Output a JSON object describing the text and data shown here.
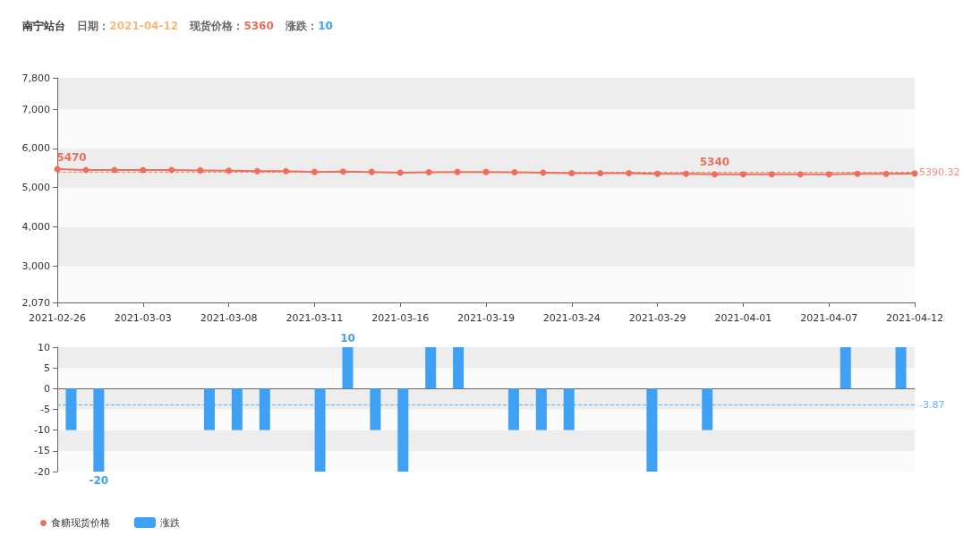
{
  "chart_data": [
    {
      "type": "line",
      "title": "南宁站台",
      "annotations": [
        "日期：2021-04-12",
        "现货价格：5360",
        "涨跌：10"
      ],
      "categories": [
        "2021-02-26",
        null,
        null,
        "2021-03-03",
        null,
        null,
        "2021-03-08",
        null,
        null,
        "2021-03-11",
        null,
        null,
        "2021-03-16",
        null,
        null,
        "2021-03-19",
        null,
        null,
        "2021-03-24",
        null,
        null,
        "2021-03-29",
        null,
        null,
        "2021-04-01",
        null,
        null,
        "2021-04-07",
        null,
        null,
        "2021-04-12"
      ],
      "series": [
        {
          "name": "食糖现货价格",
          "color": "#ee6e5c",
          "values": [
            5470,
            5450,
            5450,
            5450,
            5450,
            5440,
            5430,
            5420,
            5420,
            5400,
            5410,
            5400,
            5380,
            5390,
            5400,
            5400,
            5390,
            5380,
            5370,
            5370,
            5370,
            5350,
            5350,
            5340,
            5340,
            5340,
            5340,
            5340,
            5350,
            5350,
            5360
          ],
          "value_labels": [
            "5470",
            null,
            null,
            null,
            null,
            null,
            null,
            null,
            null,
            null,
            null,
            null,
            null,
            null,
            null,
            null,
            null,
            null,
            null,
            null,
            null,
            null,
            null,
            "5340",
            null,
            null,
            null,
            null,
            null,
            null,
            null
          ]
        }
      ],
      "ylim": [
        2070,
        7800
      ],
      "yticks": [
        {
          "value": 2070,
          "label": "2,070"
        },
        {
          "value": 3000,
          "label": "3,000"
        },
        {
          "value": 4000,
          "label": "4,000"
        },
        {
          "value": 5000,
          "label": "5,000"
        },
        {
          "value": 6000,
          "label": "6,000"
        },
        {
          "value": 7000,
          "label": "7,000"
        },
        {
          "value": 7800,
          "label": "7,800"
        }
      ],
      "legend": "bottom left",
      "marker": "circle",
      "ref_lines": [
        {
          "axis": "y",
          "value": 5390.32,
          "label": "5390.32",
          "line_style": "dashed"
        }
      ]
    },
    {
      "type": "bar",
      "categories": [
        "2021-02-26",
        null,
        null,
        "2021-03-03",
        null,
        null,
        "2021-03-08",
        null,
        null,
        "2021-03-11",
        null,
        null,
        "2021-03-16",
        null,
        null,
        "2021-03-19",
        null,
        null,
        "2021-03-24",
        null,
        null,
        "2021-03-29",
        null,
        null,
        "2021-04-01",
        null,
        null,
        "2021-04-07",
        null,
        null,
        "2021-04-12"
      ],
      "series": [
        {
          "name": "涨跌",
          "color": "#3ea1f3",
          "values": [
            -10,
            -20,
            0,
            0,
            0,
            -10,
            -10,
            -10,
            0,
            -20,
            10,
            -10,
            -20,
            10,
            10,
            0,
            -10,
            -10,
            -10,
            0,
            0,
            -20,
            0,
            -10,
            0,
            0,
            0,
            0,
            10,
            0,
            10
          ],
          "value_labels": [
            null,
            "-20",
            null,
            null,
            null,
            null,
            null,
            null,
            null,
            null,
            "10",
            null,
            null,
            null,
            null,
            null,
            null,
            null,
            null,
            null,
            null,
            null,
            null,
            null,
            null,
            null,
            null,
            null,
            null,
            null,
            null
          ]
        }
      ],
      "ylim": [
        -20,
        10
      ],
      "yticks": [
        -20,
        -15,
        -10,
        -5,
        0,
        5,
        10
      ],
      "legend": "bottom left",
      "tick_labels": "y",
      "ref_lines": [
        {
          "axis": "y",
          "value": -3.87,
          "label": "-3.87",
          "line_style": "dashed"
        }
      ]
    }
  ]
}
